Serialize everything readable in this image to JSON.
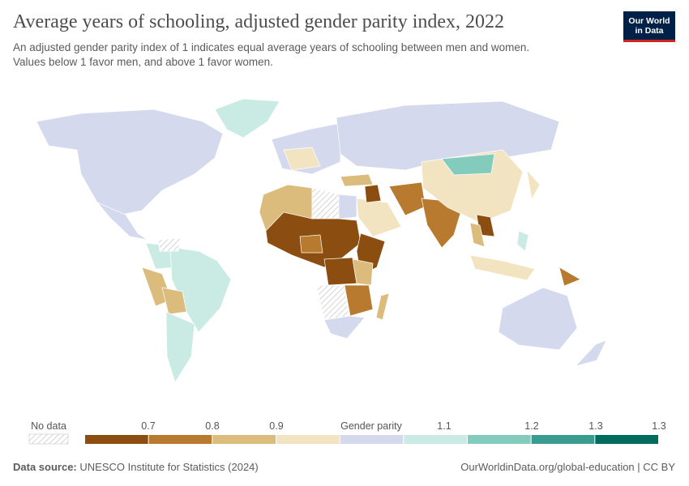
{
  "header": {
    "title": "Average years of schooling, adjusted gender parity index, 2022",
    "subtitle": [
      "An adjusted gender parity index of 1 indicates equal average years of schooling between men and women.",
      "Values below 1 favor men, and above 1 favor women."
    ]
  },
  "logo": [
    "Our World",
    "in Data"
  ],
  "legend": {
    "no_data": "No data",
    "ticks": [
      "0.7",
      "0.8",
      "0.9",
      "Gender parity",
      "1.1",
      "1.2",
      "1.3",
      "1.3"
    ],
    "colors": [
      "#8b4d10",
      "#b87a2e",
      "#dcbc7c",
      "#f2e3c1",
      "#d5d9ee",
      "#c9ebe4",
      "#82cbbd",
      "#3a9b8f",
      "#016b5e"
    ]
  },
  "footer": {
    "source_label": "Data source:",
    "source": "UNESCO Institute for Statistics (2024)",
    "credit": "OurWorldinData.org/global-education | CC BY"
  }
}
